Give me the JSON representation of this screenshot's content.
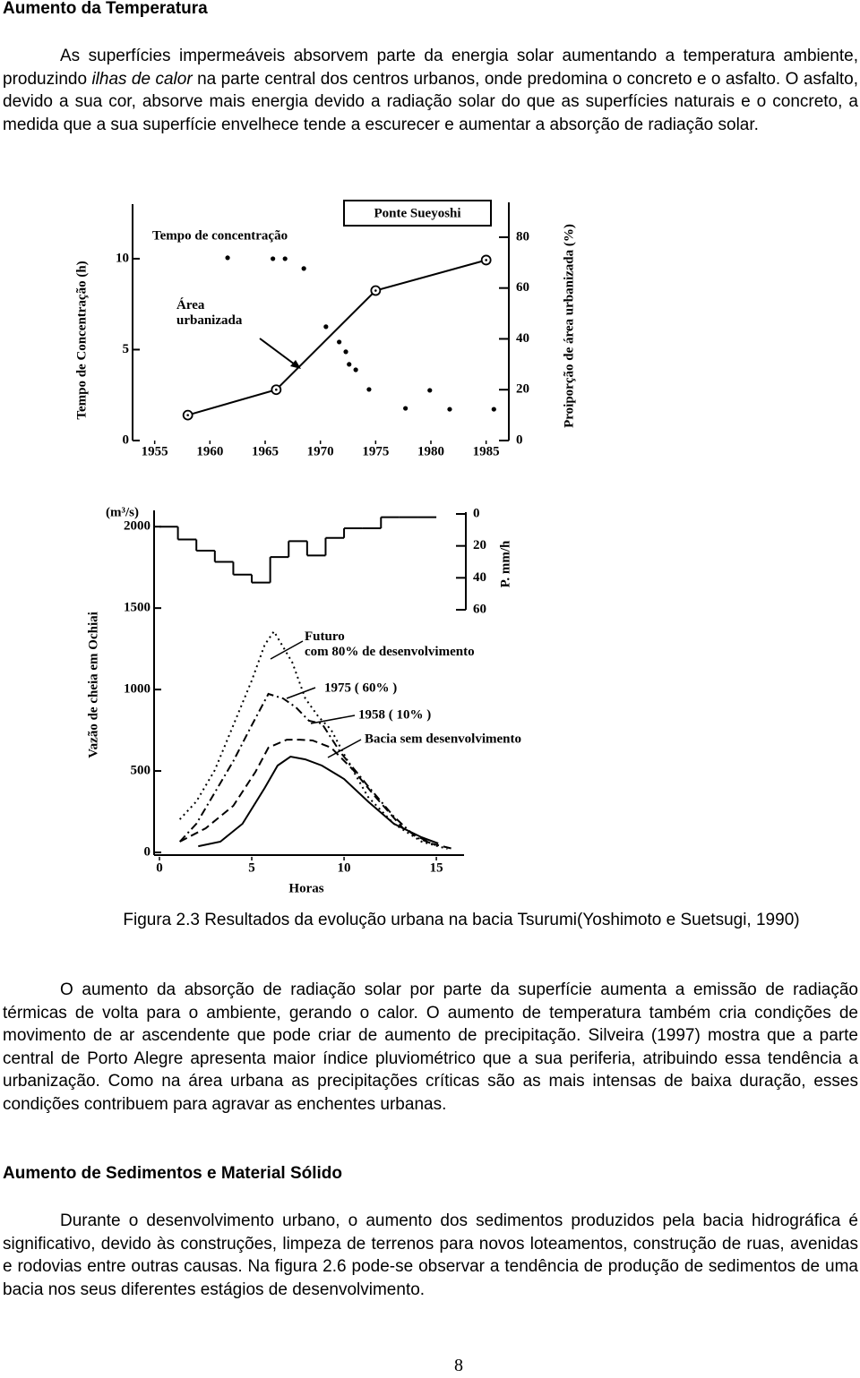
{
  "heading_1": "Aumento da Temperatura",
  "paragraph_1": [
    "As superfícies impermeáveis absorvem parte da energia solar aumentando a temperatura ambiente, produzindo ",
    "ilhas de calor",
    " na parte central dos centros urbanos, onde predomina o concreto e o asfalto. O asfalto, devido a sua cor, absorve mais energia devido a radiação solar do que as superfícies naturais e o concreto, a medida que a sua superfície envelhece tende a escurecer e aumentar a absorção de radiação solar."
  ],
  "chart_data": [
    {
      "type": "scatter",
      "title": "Ponte Sueyoshi",
      "y_label": "Tempo de Concentração (h)",
      "y2_label": "Proiporção de área urbanizada (%)",
      "xlim": [
        1953,
        1986
      ],
      "xticks": [
        1955,
        1960,
        1965,
        1970,
        1975,
        1980,
        1985
      ],
      "ylim": [
        0,
        13
      ],
      "yticks": [
        0,
        5,
        10
      ],
      "y2lim": [
        0,
        93
      ],
      "y2ticks": [
        0,
        20,
        40,
        60,
        80
      ],
      "series": [
        {
          "name": "Tempo de concentração",
          "type": "scatter",
          "color": "#000000",
          "x": [
            1961.6,
            1965.7,
            1966.8,
            1968.5,
            1970.5,
            1971.7,
            1972.3,
            1972.6,
            1973.2,
            1974.4,
            1977.7,
            1979.9,
            1981.7,
            1985.7
          ],
          "values": [
            10.05,
            10.0,
            10.0,
            9.46,
            6.26,
            5.42,
            4.88,
            4.19,
            3.89,
            2.81,
            1.77,
            2.76,
            1.72,
            1.72
          ]
        },
        {
          "name": "Área\nurbanizada",
          "type": "line",
          "axis": "y2",
          "color": "#000000",
          "x": [
            1958,
            1966,
            1975,
            1985
          ],
          "values": [
            10,
            20,
            59,
            71
          ]
        }
      ]
    },
    {
      "type": "line",
      "units": "(m³/s)",
      "y_label": "Vazão de cheia em Ochiai",
      "y2_label": "P. mm/h",
      "x_label": "Horas",
      "xlim": [
        0,
        16.5
      ],
      "xticks": [
        0,
        5,
        10,
        15
      ],
      "ylim": [
        0,
        2100
      ],
      "yticks": [
        0,
        500,
        1000,
        1500,
        2000
      ],
      "y2lim": [
        0,
        60
      ],
      "y2ticks": [
        0,
        20,
        40,
        60
      ],
      "series": [
        {
          "name": "Futuro\ncom 80% de desenvolvimento",
          "style": "dotted",
          "color": "#000000",
          "x": [
            1.1,
            2.0,
            3.0,
            4.0,
            5.0,
            5.7,
            6.2,
            7.2,
            7.9,
            8.6,
            9.3,
            10.2,
            11.3,
            12.7,
            14.2,
            15.6
          ],
          "values": [
            203,
            313,
            505,
            780,
            1055,
            1275,
            1357,
            1165,
            945,
            835,
            753,
            560,
            341,
            176,
            66,
            22
          ]
        },
        {
          "name": "1975 ( 60% )",
          "style": "dashdot",
          "color": "#000000",
          "x": [
            1.1,
            2.0,
            3.0,
            4.0,
            5.0,
            5.9,
            6.7,
            7.4,
            8.1,
            8.8,
            9.8,
            11.3,
            12.7,
            13.9,
            15.1
          ],
          "values": [
            66,
            176,
            368,
            560,
            780,
            973,
            945,
            890,
            808,
            791,
            615,
            407,
            220,
            93,
            38
          ]
        },
        {
          "name": "1958 ( 10% )",
          "style": "dashed",
          "color": "#000000",
          "x": [
            1.1,
            2.5,
            4.0,
            5.2,
            5.9,
            6.9,
            7.6,
            8.3,
            9.3,
            10.5,
            11.7,
            13.2,
            14.7,
            15.9
          ],
          "values": [
            66,
            148,
            286,
            495,
            643,
            692,
            692,
            687,
            643,
            505,
            341,
            148,
            55,
            22
          ]
        },
        {
          "name": "Bacia sem desenvolvimento",
          "style": "solid",
          "color": "#000000",
          "x": [
            2.1,
            3.3,
            4.5,
            5.7,
            6.4,
            7.1,
            7.9,
            8.8,
            10.0,
            11.3,
            12.7,
            14.2,
            15.1
          ],
          "values": [
            38,
            66,
            176,
            396,
            533,
            588,
            571,
            533,
            451,
            313,
            176,
            93,
            55
          ]
        },
        {
          "type": "step",
          "axis": "y2",
          "color": "#000000",
          "bins": [
            0,
            1,
            2,
            3,
            4,
            5,
            6,
            7,
            8,
            9,
            10,
            11,
            12,
            13,
            14,
            15
          ],
          "values": [
            8,
            16,
            23,
            30,
            38,
            43,
            27,
            17,
            26,
            15,
            9,
            9,
            2,
            2,
            2
          ]
        }
      ]
    }
  ],
  "caption": "Figura 2.3 Resultados da evolução urbana na bacia Tsurumi(Yoshimoto e Suetsugi, 1990)",
  "paragraph_2": "O aumento da absorção de radiação solar  por parte da superfície aumenta a emissão de radiação térmicas de volta para o ambiente, gerando o calor.  O aumento de temperatura também cria condições de movimento de ar ascendente que pode criar de aumento de precipitação. Silveira (1997) mostra que a parte central de Porto Alegre apresenta maior índice pluviométrico que a sua periferia, atribuindo essa tendência a urbanização. Como na área urbana as precipitações críticas são as mais intensas de baixa duração, esses condições contribuem para agravar as enchentes urbanas.",
  "heading_2": "Aumento de Sedimentos e Material Sólido",
  "paragraph_3": "Durante o desenvolvimento urbano, o aumento dos sedimentos produzidos pela bacia hidrográfica é significativo, devido às construções, limpeza de terrenos para novos loteamentos, construção de ruas, avenidas e rodovias entre outras causas.  Na figura 2.6 pode-se observar a tendência de produção de sedimentos de uma bacia nos seus diferentes estágios de desenvolvimento.",
  "page_number": "8"
}
